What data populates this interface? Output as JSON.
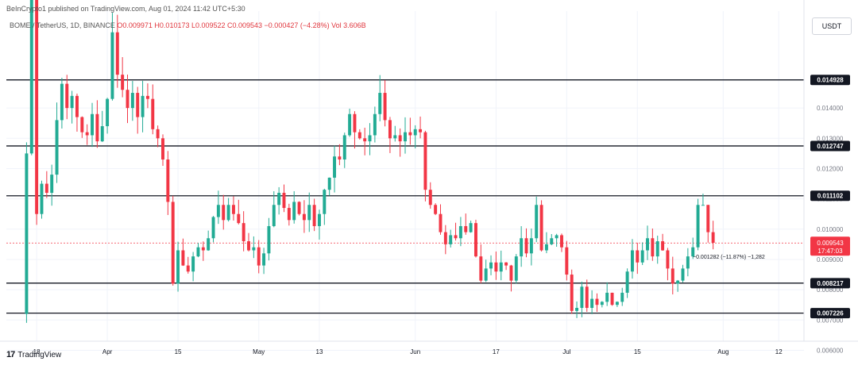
{
  "header": {
    "publisher": "BeInCrypto1 published on TradingView.com, Aug 01, 2024 11:42 UTC+5:30",
    "symbol": "BOME / TetherUS, 1D, BINANCE",
    "ohlc": "O0.009971 H0.010173 L0.009522 C0.009543 −0.000427 (−4.28%)",
    "volume": "Vol 3.606B",
    "currency": "USDT"
  },
  "footer": {
    "brand_mark": "17",
    "brand": "TradingView"
  },
  "colors": {
    "up": "#22ab94",
    "down": "#f23645",
    "line": "#131722",
    "grid": "#f0f3fa",
    "label_bg": "#131722"
  },
  "chart_data": {
    "type": "candlestick",
    "ylim": [
      0.0063,
      0.0172
    ],
    "y_ticks": [
      "0.006000",
      "0.007000",
      "0.008000",
      "0.009000",
      "0.010000",
      "0.011000",
      "0.012000",
      "0.013000",
      "0.014000"
    ],
    "x_ticks": [
      {
        "label": "18",
        "date": "2024-03-18"
      },
      {
        "label": "Apr",
        "date": "2024-04-01"
      },
      {
        "label": "15",
        "date": "2024-04-15"
      },
      {
        "label": "May",
        "date": "2024-05-01"
      },
      {
        "label": "13",
        "date": "2024-05-13"
      },
      {
        "label": "Jun",
        "date": "2024-06-01"
      },
      {
        "label": "17",
        "date": "2024-06-17"
      },
      {
        "label": "Jul",
        "date": "2024-07-01"
      },
      {
        "label": "15",
        "date": "2024-07-15"
      },
      {
        "label": "Aug",
        "date": "2024-08-01"
      },
      {
        "label": "12",
        "date": "2024-08-12"
      }
    ],
    "x_range": [
      "2024-03-12",
      "2024-08-17"
    ],
    "levels": [
      {
        "value": 0.014928,
        "label": "0.014928"
      },
      {
        "value": 0.012747,
        "label": "0.012747"
      },
      {
        "value": 0.011102,
        "label": "0.011102"
      },
      {
        "value": 0.008217,
        "label": "0.008217"
      },
      {
        "value": 0.007226,
        "label": "0.007226"
      }
    ],
    "current_price": {
      "value": 0.009543,
      "label": "0.009543",
      "countdown": "17:47:03"
    },
    "measure_annotation": "−0.001282 (−11.87%) −1,282",
    "start_date": "2024-03-16",
    "closes": [
      0.0125,
      0.0185,
      0.0105,
      0.0115,
      0.0112,
      0.0118,
      0.0136,
      0.0148,
      0.014,
      0.0144,
      0.0137,
      0.0132,
      0.0131,
      0.0138,
      0.0129,
      0.0134,
      0.0143,
      0.0165,
      0.0151,
      0.0146,
      0.014,
      0.0145,
      0.0137,
      0.0144,
      0.0143,
      0.0133,
      0.013,
      0.0123,
      0.0109,
      0.0082,
      0.0093,
      0.0088,
      0.0086,
      0.0091,
      0.0094,
      0.0093,
      0.0097,
      0.0104,
      0.0108,
      0.0103,
      0.0108,
      0.0105,
      0.0102,
      0.0096,
      0.0093,
      0.0094,
      0.0088,
      0.0092,
      0.0101,
      0.0108,
      0.0112,
      0.0107,
      0.0103,
      0.0109,
      0.0105,
      0.0103,
      0.0108,
      0.0101,
      0.0105,
      0.0113,
      0.0117,
      0.0124,
      0.0123,
      0.0131,
      0.0138,
      0.0132,
      0.013,
      0.0129,
      0.0131,
      0.0138,
      0.0145,
      0.0136,
      0.013,
      0.0131,
      0.0129,
      0.0132,
      0.0131,
      0.0133,
      0.0132,
      0.0113,
      0.0108,
      0.0105,
      0.0099,
      0.0095,
      0.0098,
      0.0097,
      0.0101,
      0.0099,
      0.0102,
      0.0091,
      0.0083,
      0.0087,
      0.0089,
      0.0086,
      0.0089,
      0.0088,
      0.0083,
      0.0091,
      0.0097,
      0.0092,
      0.0097,
      0.0108,
      0.0093,
      0.0095,
      0.0097,
      0.0098,
      0.0094,
      0.0085,
      0.0073,
      0.0074,
      0.0081,
      0.0074,
      0.0077,
      0.0075,
      0.0076,
      0.0079,
      0.0075,
      0.0076,
      0.0079,
      0.0086,
      0.0093,
      0.0089,
      0.0093,
      0.0097,
      0.0091,
      0.0096,
      0.0093,
      0.0087,
      0.0082,
      0.0083,
      0.0087,
      0.0091,
      0.0094,
      0.0108,
      0.0108,
      0.0099,
      0.00955
    ]
  }
}
